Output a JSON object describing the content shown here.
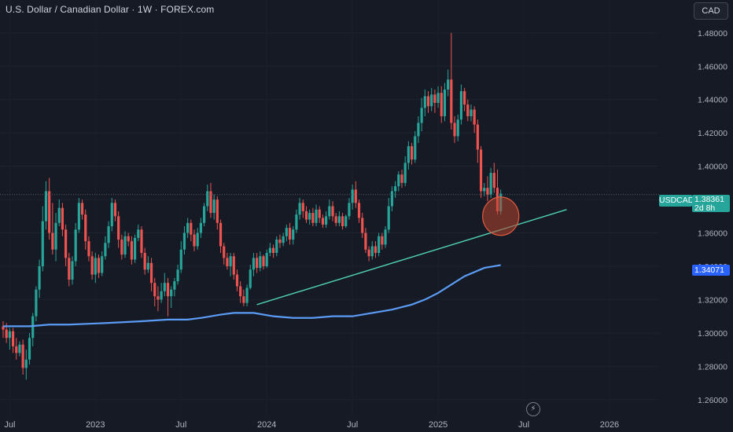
{
  "header": {
    "title": "U.S. Dollar / Canadian Dollar · 1W · FOREX.com",
    "currency_button": "CAD"
  },
  "price_tags": {
    "symbol": "USDCAD",
    "last_price": "1.38361",
    "countdown": "2d 8h",
    "ma_value": "1.34071"
  },
  "colors": {
    "background": "#161a25",
    "up": "#26a69a",
    "down": "#ef5350",
    "ma_line": "#5b9cf6",
    "trendline": "#4fd1b4",
    "circle_fill": "#b8462f",
    "axis_text": "#b2b5be"
  },
  "icons": {
    "lightning": "lightning-icon"
  },
  "chart_data": {
    "type": "candlestick",
    "symbol": "USDCAD",
    "timeframe": "1W",
    "y_axis": {
      "range": [
        1.25,
        1.495
      ],
      "ticks": [
        "1.48000",
        "1.46000",
        "1.44000",
        "1.42000",
        "1.40000",
        "1.38000",
        "1.36000",
        "1.34000",
        "1.32000",
        "1.30000",
        "1.28000",
        "1.26000"
      ]
    },
    "x_axis": {
      "ticks": [
        "Jul",
        "2023",
        "Jul",
        "2024",
        "Jul",
        "2025",
        "Jul",
        "2026"
      ]
    },
    "x_domain": [
      0,
      200
    ],
    "x_tick_positions": [
      2,
      28,
      54,
      80,
      106,
      132,
      158,
      184
    ],
    "current_price": 1.38361,
    "guide_line": 1.383,
    "ma_line": {
      "name": "MA",
      "points": [
        [
          0,
          1.304
        ],
        [
          8,
          1.304
        ],
        [
          14,
          1.305
        ],
        [
          20,
          1.305
        ],
        [
          26,
          1.3055
        ],
        [
          32,
          1.306
        ],
        [
          42,
          1.307
        ],
        [
          50,
          1.308
        ],
        [
          56,
          1.308
        ],
        [
          60,
          1.309
        ],
        [
          66,
          1.311
        ],
        [
          70,
          1.312
        ],
        [
          76,
          1.312
        ],
        [
          82,
          1.31
        ],
        [
          88,
          1.309
        ],
        [
          94,
          1.309
        ],
        [
          100,
          1.31
        ],
        [
          106,
          1.31
        ],
        [
          112,
          1.312
        ],
        [
          118,
          1.314
        ],
        [
          124,
          1.317
        ],
        [
          128,
          1.32
        ],
        [
          132,
          1.324
        ],
        [
          136,
          1.329
        ],
        [
          140,
          1.334
        ],
        [
          146,
          1.339
        ],
        [
          151,
          1.34071
        ]
      ]
    },
    "trendline": {
      "from": [
        77,
        1.317
      ],
      "to": [
        171,
        1.374
      ]
    },
    "circle_marker": {
      "center": [
        151,
        1.37
      ],
      "radius_x": 5.5,
      "radius_y": 0.0115
    },
    "candles": [
      [
        1.304,
        1.302,
        1.307,
        1.297
      ],
      [
        1.302,
        1.297,
        1.306,
        1.294
      ],
      [
        1.297,
        1.301,
        1.303,
        1.29
      ],
      [
        1.301,
        1.292,
        1.303,
        1.288
      ],
      [
        1.292,
        1.288,
        1.297,
        1.284
      ],
      [
        1.288,
        1.293,
        1.295,
        1.286
      ],
      [
        1.293,
        1.279,
        1.296,
        1.275
      ],
      [
        1.279,
        1.284,
        1.29,
        1.272
      ],
      [
        1.284,
        1.297,
        1.3,
        1.281
      ],
      [
        1.297,
        1.31,
        1.312,
        1.292
      ],
      [
        1.31,
        1.326,
        1.328,
        1.307
      ],
      [
        1.326,
        1.34,
        1.344,
        1.321
      ],
      [
        1.34,
        1.367,
        1.376,
        1.337
      ],
      [
        1.367,
        1.385,
        1.391,
        1.362
      ],
      [
        1.385,
        1.36,
        1.393,
        1.356
      ],
      [
        1.36,
        1.35,
        1.378,
        1.347
      ],
      [
        1.35,
        1.366,
        1.372,
        1.343
      ],
      [
        1.366,
        1.375,
        1.38,
        1.364
      ],
      [
        1.375,
        1.362,
        1.378,
        1.358
      ],
      [
        1.362,
        1.345,
        1.365,
        1.34
      ],
      [
        1.345,
        1.332,
        1.348,
        1.328
      ],
      [
        1.332,
        1.343,
        1.346,
        1.329
      ],
      [
        1.343,
        1.362,
        1.366,
        1.34
      ],
      [
        1.362,
        1.378,
        1.381,
        1.36
      ],
      [
        1.378,
        1.371,
        1.38,
        1.368
      ],
      [
        1.371,
        1.355,
        1.374,
        1.35
      ],
      [
        1.355,
        1.346,
        1.358,
        1.343
      ],
      [
        1.346,
        1.335,
        1.349,
        1.332
      ],
      [
        1.335,
        1.345,
        1.348,
        1.33
      ],
      [
        1.345,
        1.336,
        1.347,
        1.333
      ],
      [
        1.336,
        1.346,
        1.349,
        1.334
      ],
      [
        1.346,
        1.354,
        1.358,
        1.344
      ],
      [
        1.354,
        1.364,
        1.367,
        1.351
      ],
      [
        1.364,
        1.378,
        1.381,
        1.361
      ],
      [
        1.378,
        1.37,
        1.38,
        1.367
      ],
      [
        1.37,
        1.356,
        1.373,
        1.351
      ],
      [
        1.356,
        1.347,
        1.359,
        1.344
      ],
      [
        1.347,
        1.358,
        1.361,
        1.345
      ],
      [
        1.358,
        1.355,
        1.36,
        1.352
      ],
      [
        1.355,
        1.344,
        1.358,
        1.341
      ],
      [
        1.344,
        1.357,
        1.359,
        1.342
      ],
      [
        1.357,
        1.362,
        1.365,
        1.355
      ],
      [
        1.362,
        1.348,
        1.364,
        1.345
      ],
      [
        1.348,
        1.338,
        1.351,
        1.335
      ],
      [
        1.338,
        1.342,
        1.346,
        1.336
      ],
      [
        1.342,
        1.33,
        1.345,
        1.325
      ],
      [
        1.33,
        1.322,
        1.333,
        1.316
      ],
      [
        1.322,
        1.32,
        1.328,
        1.313
      ],
      [
        1.32,
        1.325,
        1.33,
        1.318
      ],
      [
        1.325,
        1.33,
        1.336,
        1.322
      ],
      [
        1.33,
        1.322,
        1.333,
        1.31
      ],
      [
        1.322,
        1.326,
        1.328,
        1.315
      ],
      [
        1.326,
        1.331,
        1.333,
        1.322
      ],
      [
        1.331,
        1.338,
        1.341,
        1.329
      ],
      [
        1.338,
        1.35,
        1.355,
        1.336
      ],
      [
        1.35,
        1.36,
        1.364,
        1.347
      ],
      [
        1.36,
        1.366,
        1.369,
        1.357
      ],
      [
        1.366,
        1.359,
        1.368,
        1.355
      ],
      [
        1.359,
        1.352,
        1.362,
        1.349
      ],
      [
        1.352,
        1.36,
        1.363,
        1.35
      ],
      [
        1.36,
        1.366,
        1.369,
        1.357
      ],
      [
        1.366,
        1.376,
        1.378,
        1.364
      ],
      [
        1.376,
        1.385,
        1.389,
        1.373
      ],
      [
        1.385,
        1.372,
        1.39,
        1.369
      ],
      [
        1.372,
        1.38,
        1.383,
        1.368
      ],
      [
        1.38,
        1.366,
        1.382,
        1.362
      ],
      [
        1.366,
        1.352,
        1.368,
        1.348
      ],
      [
        1.352,
        1.345,
        1.354,
        1.341
      ],
      [
        1.345,
        1.34,
        1.348,
        1.338
      ],
      [
        1.34,
        1.346,
        1.348,
        1.334
      ],
      [
        1.346,
        1.335,
        1.348,
        1.332
      ],
      [
        1.335,
        1.328,
        1.338,
        1.325
      ],
      [
        1.328,
        1.322,
        1.331,
        1.318
      ],
      [
        1.322,
        1.318,
        1.326,
        1.316
      ],
      [
        1.318,
        1.327,
        1.329,
        1.316
      ],
      [
        1.327,
        1.338,
        1.341,
        1.326
      ],
      [
        1.338,
        1.345,
        1.348,
        1.334
      ],
      [
        1.345,
        1.339,
        1.348,
        1.336
      ],
      [
        1.339,
        1.346,
        1.349,
        1.337
      ],
      [
        1.346,
        1.34,
        1.347,
        1.338
      ],
      [
        1.34,
        1.348,
        1.35,
        1.339
      ],
      [
        1.348,
        1.351,
        1.354,
        1.346
      ],
      [
        1.351,
        1.348,
        1.353,
        1.345
      ],
      [
        1.348,
        1.356,
        1.358,
        1.346
      ],
      [
        1.356,
        1.354,
        1.359,
        1.351
      ],
      [
        1.354,
        1.358,
        1.36,
        1.352
      ],
      [
        1.358,
        1.363,
        1.365,
        1.355
      ],
      [
        1.363,
        1.356,
        1.366,
        1.353
      ],
      [
        1.356,
        1.362,
        1.364,
        1.353
      ],
      [
        1.362,
        1.371,
        1.374,
        1.36
      ],
      [
        1.371,
        1.378,
        1.381,
        1.368
      ],
      [
        1.378,
        1.373,
        1.38,
        1.369
      ],
      [
        1.373,
        1.368,
        1.376,
        1.366
      ],
      [
        1.368,
        1.372,
        1.374,
        1.365
      ],
      [
        1.372,
        1.366,
        1.375,
        1.364
      ],
      [
        1.366,
        1.374,
        1.377,
        1.364
      ],
      [
        1.374,
        1.369,
        1.376,
        1.366
      ],
      [
        1.369,
        1.365,
        1.371,
        1.363
      ],
      [
        1.365,
        1.37,
        1.373,
        1.363
      ],
      [
        1.37,
        1.376,
        1.38,
        1.368
      ],
      [
        1.376,
        1.37,
        1.379,
        1.367
      ],
      [
        1.37,
        1.366,
        1.372,
        1.364
      ],
      [
        1.366,
        1.37,
        1.373,
        1.364
      ],
      [
        1.37,
        1.364,
        1.372,
        1.362
      ],
      [
        1.364,
        1.37,
        1.371,
        1.363
      ],
      [
        1.37,
        1.378,
        1.381,
        1.368
      ],
      [
        1.378,
        1.386,
        1.389,
        1.374
      ],
      [
        1.386,
        1.378,
        1.391,
        1.375
      ],
      [
        1.378,
        1.369,
        1.38,
        1.366
      ],
      [
        1.369,
        1.36,
        1.372,
        1.357
      ],
      [
        1.36,
        1.35,
        1.363,
        1.348
      ],
      [
        1.35,
        1.346,
        1.352,
        1.343
      ],
      [
        1.346,
        1.352,
        1.355,
        1.344
      ],
      [
        1.352,
        1.348,
        1.355,
        1.345
      ],
      [
        1.348,
        1.358,
        1.36,
        1.346
      ],
      [
        1.358,
        1.353,
        1.36,
        1.35
      ],
      [
        1.353,
        1.362,
        1.364,
        1.351
      ],
      [
        1.362,
        1.376,
        1.381,
        1.36
      ],
      [
        1.376,
        1.385,
        1.388,
        1.373
      ],
      [
        1.385,
        1.388,
        1.391,
        1.381
      ],
      [
        1.388,
        1.395,
        1.397,
        1.385
      ],
      [
        1.395,
        1.39,
        1.398,
        1.387
      ],
      [
        1.39,
        1.402,
        1.406,
        1.388
      ],
      [
        1.402,
        1.412,
        1.415,
        1.398
      ],
      [
        1.412,
        1.404,
        1.414,
        1.401
      ],
      [
        1.404,
        1.418,
        1.421,
        1.402
      ],
      [
        1.418,
        1.426,
        1.43,
        1.414
      ],
      [
        1.426,
        1.435,
        1.441,
        1.421
      ],
      [
        1.435,
        1.442,
        1.446,
        1.43
      ],
      [
        1.442,
        1.436,
        1.445,
        1.432
      ],
      [
        1.436,
        1.443,
        1.447,
        1.433
      ],
      [
        1.443,
        1.438,
        1.446,
        1.432
      ],
      [
        1.438,
        1.444,
        1.448,
        1.435
      ],
      [
        1.444,
        1.43,
        1.448,
        1.426
      ],
      [
        1.43,
        1.446,
        1.45,
        1.427
      ],
      [
        1.446,
        1.452,
        1.458,
        1.442
      ],
      [
        1.452,
        1.426,
        1.48,
        1.422
      ],
      [
        1.426,
        1.418,
        1.43,
        1.414
      ],
      [
        1.418,
        1.428,
        1.431,
        1.415
      ],
      [
        1.428,
        1.445,
        1.449,
        1.425
      ],
      [
        1.445,
        1.437,
        1.447,
        1.433
      ],
      [
        1.437,
        1.43,
        1.44,
        1.427
      ],
      [
        1.43,
        1.434,
        1.437,
        1.427
      ],
      [
        1.434,
        1.425,
        1.436,
        1.42
      ],
      [
        1.425,
        1.41,
        1.428,
        1.402
      ],
      [
        1.41,
        1.385,
        1.412,
        1.381
      ],
      [
        1.385,
        1.387,
        1.39,
        1.382
      ],
      [
        1.387,
        1.383,
        1.394,
        1.379
      ],
      [
        1.383,
        1.396,
        1.399,
        1.381
      ],
      [
        1.396,
        1.387,
        1.402,
        1.384
      ],
      [
        1.387,
        1.373,
        1.398,
        1.371
      ],
      [
        1.373,
        1.38361,
        1.386,
        1.371
      ]
    ]
  }
}
